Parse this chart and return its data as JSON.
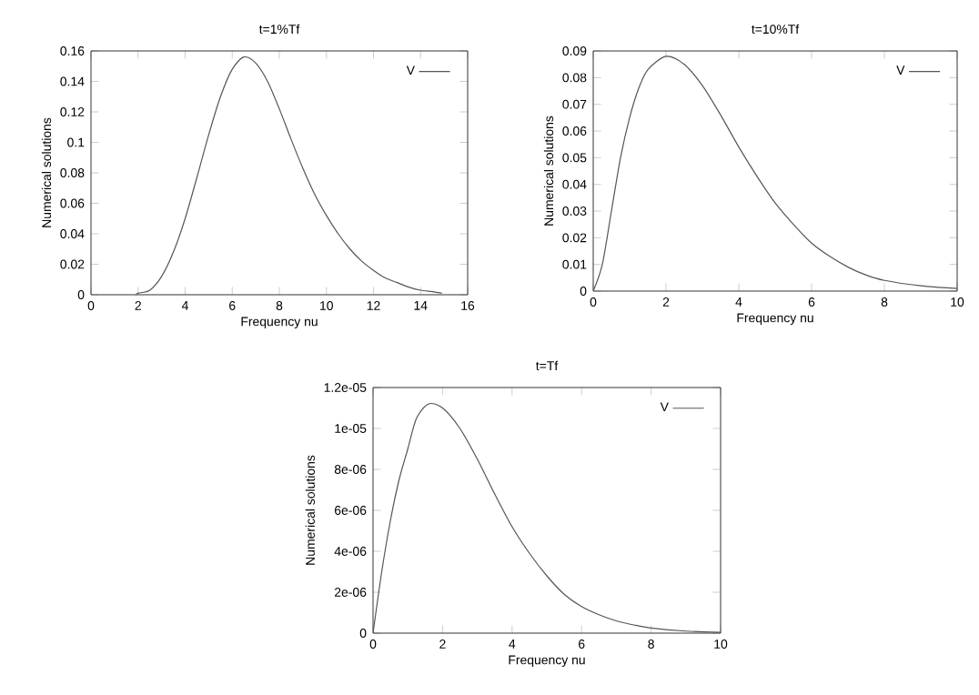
{
  "chart_data": [
    {
      "type": "line",
      "title": "t=1%Tf",
      "xlabel": "Frequency nu",
      "ylabel": "Numerical solutions",
      "legend": "top right",
      "xlim": [
        0,
        16
      ],
      "ylim": [
        0,
        0.16
      ],
      "xticks": [
        0,
        2,
        4,
        6,
        8,
        10,
        12,
        14,
        16
      ],
      "yticks": [
        0,
        0.02,
        0.04,
        0.06,
        0.08,
        0.1,
        0.12,
        0.14,
        0.16
      ],
      "x": [
        1.9,
        2,
        2.5,
        3,
        3.5,
        4,
        4.5,
        5,
        5.5,
        6,
        6.5,
        7,
        7.5,
        8,
        8.5,
        9,
        9.5,
        10,
        10.5,
        11,
        11.5,
        12,
        12.5,
        13,
        13.5,
        14,
        14.5,
        14.9
      ],
      "series": [
        {
          "name": "V",
          "color": "#555555",
          "values": [
            0,
            0.001,
            0.003,
            0.012,
            0.028,
            0.05,
            0.077,
            0.105,
            0.13,
            0.148,
            0.156,
            0.152,
            0.14,
            0.122,
            0.102,
            0.083,
            0.066,
            0.052,
            0.04,
            0.03,
            0.022,
            0.016,
            0.011,
            0.008,
            0.005,
            0.003,
            0.002,
            0.001
          ]
        }
      ]
    },
    {
      "type": "line",
      "title": "t=10%Tf",
      "xlabel": "Frequency nu",
      "ylabel": "Numerical solutions",
      "legend": "top right",
      "xlim": [
        0,
        10
      ],
      "ylim": [
        0,
        0.09
      ],
      "xticks": [
        0,
        2,
        4,
        6,
        8,
        10
      ],
      "yticks": [
        0,
        0.01,
        0.02,
        0.03,
        0.04,
        0.05,
        0.06,
        0.07,
        0.08,
        0.09
      ],
      "x": [
        0,
        0.25,
        0.5,
        0.75,
        1,
        1.25,
        1.5,
        2,
        2.5,
        3,
        3.5,
        4,
        4.5,
        5,
        5.5,
        6,
        6.5,
        7,
        7.5,
        8,
        9,
        10
      ],
      "series": [
        {
          "name": "V",
          "color": "#555555",
          "values": [
            0,
            0.01,
            0.03,
            0.05,
            0.065,
            0.076,
            0.083,
            0.088,
            0.085,
            0.077,
            0.066,
            0.054,
            0.043,
            0.033,
            0.025,
            0.018,
            0.013,
            0.009,
            0.006,
            0.004,
            0.002,
            0.001
          ]
        }
      ]
    },
    {
      "type": "line",
      "title": "t=Tf",
      "xlabel": "Frequency nu",
      "ylabel": "Numerical solutions",
      "legend": "top right",
      "xlim": [
        0,
        10
      ],
      "ylim": [
        0,
        1.2e-05
      ],
      "xticks": [
        0,
        2,
        4,
        6,
        8,
        10
      ],
      "yticks": [
        0,
        {
          "value": 2e-06,
          "label": "2e-06"
        },
        {
          "value": 4e-06,
          "label": "4e-06"
        },
        {
          "value": 6e-06,
          "label": "6e-06"
        },
        {
          "value": 8e-06,
          "label": "8e-06"
        },
        {
          "value": 1e-05,
          "label": "1e-05"
        },
        {
          "value": 1.2e-05,
          "label": "1.2e-05"
        }
      ],
      "x": [
        0,
        0.25,
        0.5,
        0.75,
        1,
        1.25,
        1.6,
        2,
        2.5,
        3,
        3.5,
        4,
        4.5,
        5,
        5.5,
        6,
        6.5,
        7,
        7.5,
        8,
        9,
        10
      ],
      "series": [
        {
          "name": "V",
          "color": "#555555",
          "values": [
            0,
            3e-06,
            5.5e-06,
            7.5e-06,
            9e-06,
            1.05e-05,
            1.12e-05,
            1.1e-05,
            1e-05,
            8.5e-06,
            6.8e-06,
            5.2e-06,
            3.9e-06,
            2.8e-06,
            1.9e-06,
            1.3e-06,
            9e-07,
            6e-07,
            4e-07,
            2.5e-07,
            1e-07,
            4e-08
          ]
        }
      ]
    }
  ]
}
